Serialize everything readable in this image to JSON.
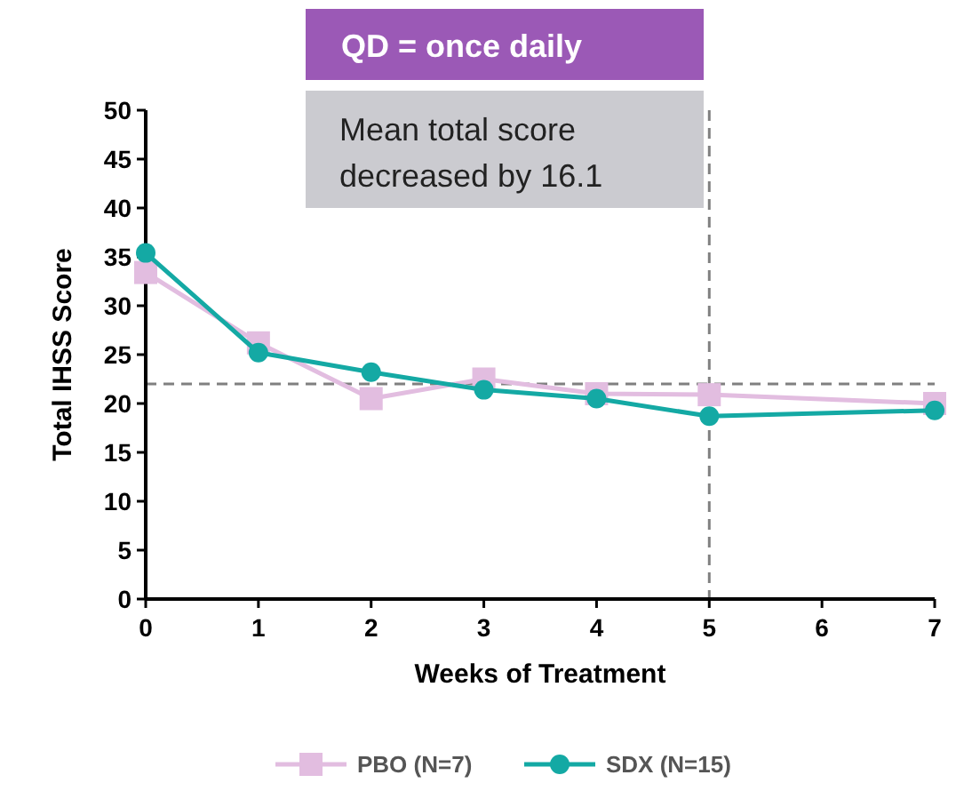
{
  "chart_data": {
    "type": "line",
    "xlabel": "Weeks of Treatment",
    "ylabel": "Total IHSS Score",
    "annotations": [
      "QD = once daily",
      "Mean total score decreased by 16.1"
    ],
    "x": [
      0,
      1,
      2,
      3,
      4,
      5,
      7
    ],
    "xlim": [
      0,
      7
    ],
    "xticks": [
      0,
      1,
      2,
      3,
      4,
      5,
      6,
      7
    ],
    "ylim": [
      0,
      50
    ],
    "yticks": [
      0,
      5,
      10,
      15,
      20,
      25,
      30,
      35,
      40,
      45,
      50
    ],
    "series": [
      {
        "name": "PBO (N=7)",
        "color": "#e2bde0",
        "marker": "square",
        "values": [
          33.4,
          26.2,
          20.5,
          22.5,
          21.0,
          20.9,
          20.0
        ]
      },
      {
        "name": "SDX (N=15)",
        "color": "#14a9a4",
        "marker": "circle",
        "values": [
          35.4,
          25.2,
          23.2,
          21.4,
          20.5,
          18.7,
          19.3
        ]
      }
    ],
    "ref_lines": [
      {
        "axis": "y",
        "value": 22,
        "color": "#808080",
        "line_style": "dashed"
      },
      {
        "axis": "x",
        "value": 5,
        "color": "#808080",
        "line_style": "dashed"
      }
    ],
    "legend": "bottom",
    "grid": false
  }
}
